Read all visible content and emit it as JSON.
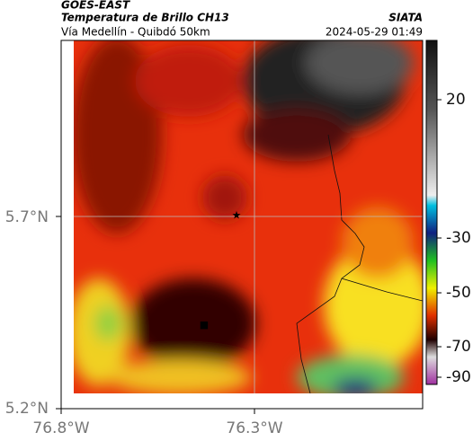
{
  "header": {
    "title": "GOES-EAST",
    "subtitle": "Temperatura de Brillo CH13",
    "source": "SIATA",
    "location": "Vía Medellín - Quibdó 50km",
    "datetime": "2024-05-29 01:49"
  },
  "map": {
    "lat_labels": [
      "5.7°N",
      "5.2°N"
    ],
    "lon_labels": [
      "76.8°W",
      "76.3°W"
    ]
  },
  "colorbar": {
    "ticks": [
      20,
      -30,
      -50,
      -70,
      -90
    ]
  }
}
